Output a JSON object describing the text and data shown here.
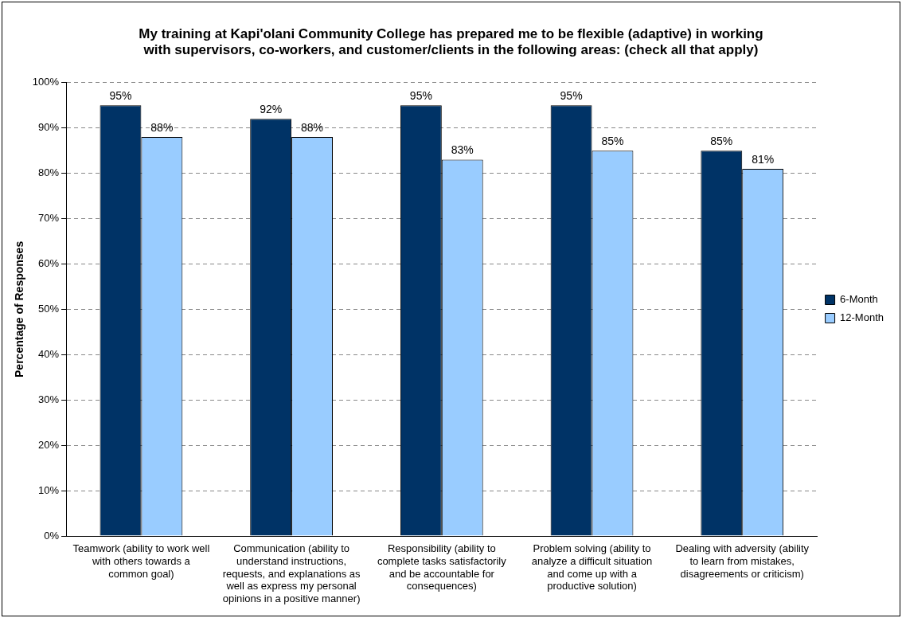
{
  "chart_data": {
    "type": "bar",
    "title": "My training at Kapi'olani Community College has prepared me to be flexible (adaptive) in working with supervisors, co-workers, and customer/clients in the following areas: (check all that apply)",
    "ylabel": "Percentage of Responses",
    "categories": [
      "Teamwork (ability to work well with others towards a common goal)",
      "Communication (ability to understand instructions, requests, and explanations as well as express my personal opinions in a positive manner)",
      "Responsibility (ability to complete tasks satisfactorily and be accountable for consequences)",
      "Problem solving (ability to analyze a difficult situation and come up with a productive solution)",
      "Dealing with adversity (ability to learn from mistakes, disagreements or criticism)"
    ],
    "series": [
      {
        "name": "6-Month",
        "color": "#003366",
        "values": [
          95,
          92,
          95,
          95,
          85
        ],
        "value_labels": [
          "95%",
          "92%",
          "95%",
          "95%",
          "85%"
        ]
      },
      {
        "name": "12-Month",
        "color": "#99ccff",
        "values": [
          88,
          88,
          83,
          85,
          81
        ],
        "value_labels": [
          "88%",
          "88%",
          "83%",
          "85%",
          "81%"
        ]
      }
    ],
    "ylim": [
      0,
      100
    ],
    "yticks": [
      {
        "value": 0,
        "label": "0%"
      },
      {
        "value": 10,
        "label": "10%"
      },
      {
        "value": 20,
        "label": "20%"
      },
      {
        "value": 30,
        "label": "30%"
      },
      {
        "value": 40,
        "label": "40%"
      },
      {
        "value": 50,
        "label": "50%"
      },
      {
        "value": 60,
        "label": "60%"
      },
      {
        "value": 70,
        "label": "70%"
      },
      {
        "value": 80,
        "label": "80%"
      },
      {
        "value": 90,
        "label": "90%"
      },
      {
        "value": 100,
        "label": "100%"
      }
    ],
    "grid": "y",
    "legend": "right"
  }
}
